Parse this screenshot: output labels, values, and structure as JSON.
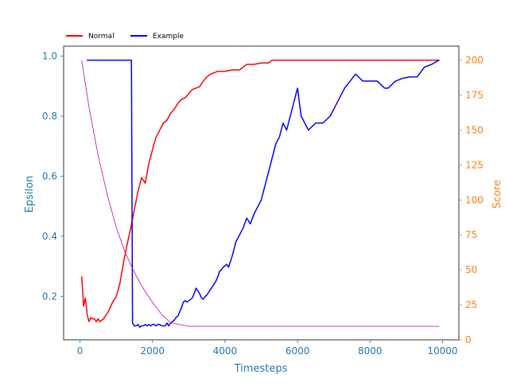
{
  "chart_data": {
    "type": "line",
    "xlabel": "Timesteps",
    "ylabel_left": "Epsilon",
    "ylabel_right": "Score",
    "xlim": [
      -450,
      10450
    ],
    "ylim_left": [
      0.055,
      1.033
    ],
    "ylim_right": [
      0,
      210
    ],
    "x_ticks": [
      0,
      2000,
      4000,
      6000,
      8000,
      10000
    ],
    "x_tick_labels": [
      "0",
      "2000",
      "4000",
      "6000",
      "8000",
      "10000"
    ],
    "left_ticks": [
      0.2,
      0.4,
      0.6,
      0.8,
      1.0
    ],
    "left_tick_labels": [
      "0.2",
      "0.4",
      "0.6",
      "0.8",
      "1.0"
    ],
    "right_ticks": [
      0,
      25,
      50,
      75,
      100,
      125,
      150,
      175,
      200
    ],
    "right_tick_labels": [
      "0",
      "25",
      "50",
      "75",
      "100",
      "125",
      "150",
      "175",
      "200"
    ],
    "grid": false,
    "legend_position": "top-left-outside",
    "colors": {
      "normal": "#ff0000",
      "example": "#0000ff",
      "epsilon": "#bf00bf",
      "left_axis": "#1f77b4",
      "right_axis": "#ff7f0e"
    },
    "series": [
      {
        "name": "Normal",
        "axis": "right",
        "x": [
          50,
          100,
          150,
          200,
          250,
          300,
          350,
          400,
          450,
          500,
          550,
          600,
          650,
          700,
          800,
          900,
          1000,
          1100,
          1200,
          1300,
          1400,
          1500,
          1600,
          1700,
          1800,
          1900,
          2000,
          2100,
          2200,
          2300,
          2400,
          2500,
          2600,
          2700,
          2800,
          2900,
          3000,
          3100,
          3200,
          3300,
          3400,
          3500,
          3600,
          3700,
          3800,
          3900,
          4000,
          4200,
          4400,
          4600,
          4800,
          5000,
          5200,
          5300,
          5500,
          6000,
          7000,
          8000,
          9000,
          9900
        ],
        "values": [
          45,
          24,
          30,
          18,
          13,
          16,
          15,
          15,
          13,
          15,
          13,
          14,
          15,
          17,
          21,
          27,
          31,
          40,
          55,
          68,
          80,
          93,
          106,
          116,
          112,
          126,
          136,
          145,
          150,
          155,
          157,
          162,
          165,
          169,
          172,
          173,
          176,
          179,
          180,
          181,
          185,
          188,
          190,
          191,
          192,
          192,
          192,
          193,
          193,
          197,
          197,
          198,
          198,
          200,
          200,
          200,
          200,
          200,
          200,
          200
        ]
      },
      {
        "name": "Example",
        "axis": "right",
        "x": [
          200,
          400,
          800,
          1200,
          1380,
          1420,
          1450,
          1500,
          1550,
          1600,
          1650,
          1700,
          1750,
          1800,
          1850,
          1900,
          1950,
          2000,
          2050,
          2100,
          2150,
          2200,
          2250,
          2300,
          2350,
          2400,
          2450,
          2500,
          2550,
          2600,
          2650,
          2700,
          2750,
          2800,
          2850,
          2900,
          2950,
          3000,
          3050,
          3100,
          3150,
          3200,
          3250,
          3300,
          3350,
          3400,
          3450,
          3500,
          3550,
          3600,
          3650,
          3700,
          3750,
          3800,
          3850,
          3900,
          3950,
          4000,
          4050,
          4100,
          4150,
          4200,
          4300,
          4400,
          4500,
          4600,
          4700,
          4800,
          4900,
          5000,
          5100,
          5200,
          5300,
          5400,
          5500,
          5600,
          5700,
          5800,
          5900,
          6000,
          6100,
          6300,
          6500,
          6700,
          6900,
          7100,
          7300,
          7450,
          7600,
          7800,
          8000,
          8200,
          8400,
          8500,
          8700,
          8900,
          9100,
          9300,
          9500,
          9700,
          9900
        ],
        "values": [
          200,
          200,
          200,
          200,
          200,
          200,
          12,
          10,
          10,
          11,
          9,
          10,
          10,
          11,
          10,
          11,
          10,
          11,
          11,
          10,
          11,
          11,
          10,
          10,
          10,
          12,
          10,
          12,
          13,
          14,
          16,
          17,
          20,
          23,
          27,
          28,
          27,
          28,
          29,
          30,
          33,
          37,
          35,
          33,
          30,
          29,
          31,
          32,
          34,
          36,
          38,
          40,
          42,
          45,
          49,
          50,
          52,
          53,
          54,
          52,
          56,
          60,
          70,
          75,
          80,
          87,
          83,
          90,
          95,
          100,
          110,
          120,
          130,
          140,
          145,
          155,
          150,
          160,
          170,
          180,
          160,
          150,
          155,
          155,
          160,
          170,
          180,
          185,
          190,
          185,
          185,
          185,
          180,
          180,
          185,
          187,
          188,
          188,
          195,
          197,
          200
        ]
      },
      {
        "name": "",
        "axis": "left",
        "description_free": true,
        "x": [
          50,
          250,
          500,
          750,
          1000,
          1250,
          1500,
          1750,
          2000,
          2250,
          2500,
          3000,
          4000,
          5000,
          6000,
          7000,
          8000,
          9000,
          9900
        ],
        "values": [
          0.985,
          0.83,
          0.67,
          0.54,
          0.43,
          0.345,
          0.28,
          0.225,
          0.18,
          0.14,
          0.112,
          0.1,
          0.1,
          0.1,
          0.1,
          0.1,
          0.1,
          0.1,
          0.1
        ]
      }
    ]
  }
}
